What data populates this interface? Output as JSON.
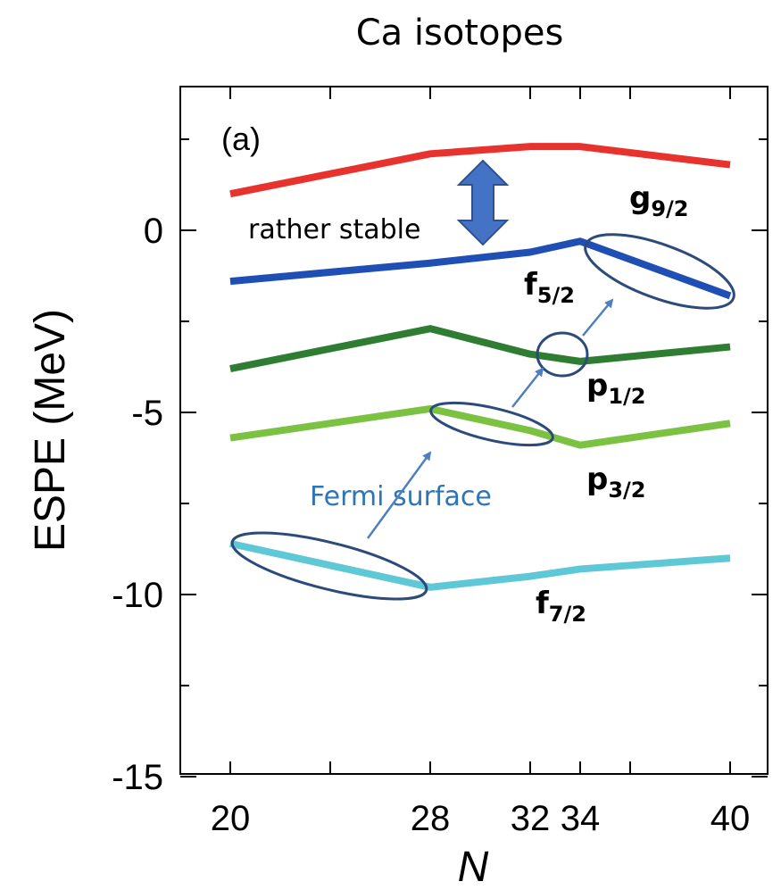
{
  "chart_data": {
    "type": "line",
    "title": "Ca isotopes",
    "panel_label": "(a)",
    "xlabel": "N",
    "ylabel": "ESPE (MeV)",
    "xlim": [
      18,
      41
    ],
    "ylim": [
      -15,
      4
    ],
    "x_ticks": [
      20,
      28,
      32,
      34,
      40
    ],
    "y_ticks": [
      0,
      -5,
      -10,
      -15
    ],
    "x": [
      20,
      28,
      32,
      34,
      40
    ],
    "series": [
      {
        "orbital": "g",
        "label_sub": "9/2",
        "color": "#e8322d",
        "values": [
          1.0,
          2.1,
          2.3,
          2.3,
          1.8
        ]
      },
      {
        "orbital": "f",
        "label_sub": "5/2",
        "color": "#1f4fb5",
        "values": [
          -1.4,
          -0.9,
          -0.6,
          -0.3,
          -1.8
        ]
      },
      {
        "orbital": "p",
        "label_sub": "1/2",
        "color": "#2e7d32",
        "values": [
          -3.8,
          -2.7,
          -3.4,
          -3.6,
          -3.2
        ]
      },
      {
        "orbital": "p",
        "label_sub": "3/2",
        "color": "#7cc242",
        "values": [
          -5.7,
          -4.9,
          -5.5,
          -5.9,
          -5.3
        ]
      },
      {
        "orbital": "f",
        "label_sub": "7/2",
        "color": "#5fc8d6",
        "values": [
          -8.6,
          -9.8,
          -9.5,
          -9.3,
          -9.0
        ]
      }
    ],
    "annotations": {
      "gap_text": "rather stable",
      "fermi_text": "Fermi surface",
      "fermi_color": "#2e75b6",
      "ellipse_color": "#2c4a7a",
      "arrow_color": "#4f7fbf"
    },
    "grid": false
  }
}
